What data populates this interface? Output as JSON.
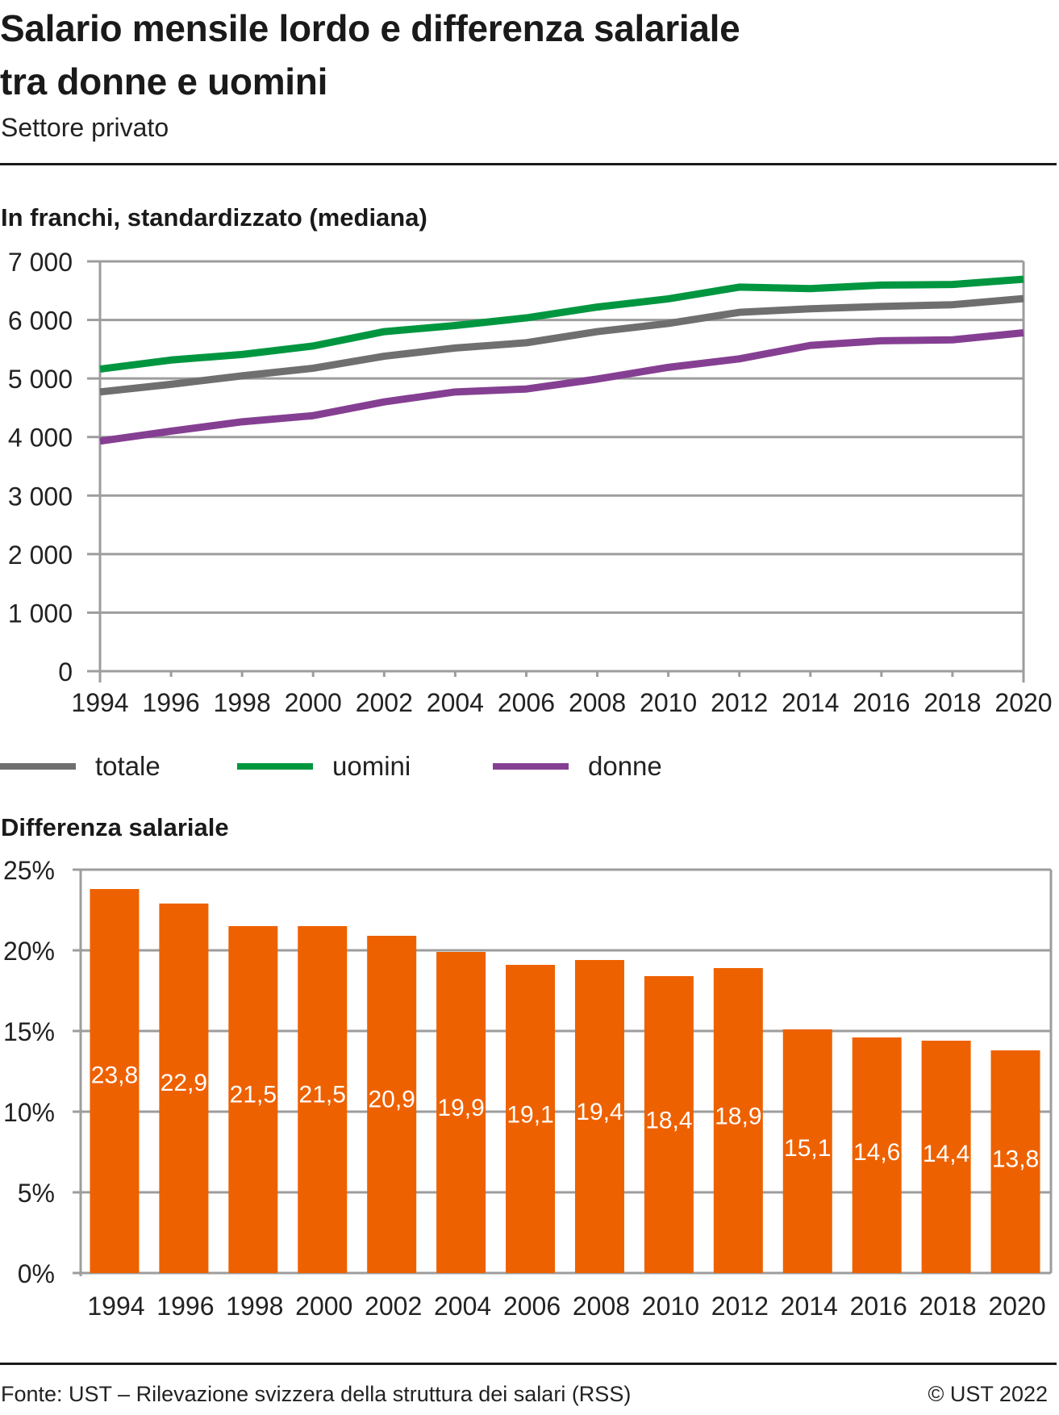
{
  "header": {
    "title_line1": "Salario mensile lordo e differenza salariale",
    "title_line2": "tra donne e uomini",
    "subtitle": "Settore privato"
  },
  "colors": {
    "totale": "#6f6f6f",
    "uomini": "#009640",
    "donne": "#853f92",
    "bars": "#ee6100",
    "grid": "#9d9d9d",
    "text": "#1a1a1a"
  },
  "chart_data": [
    {
      "type": "line",
      "title": "In franchi, standardizzato (mediana)",
      "xlabel": "",
      "ylabel": "",
      "x": [
        1994,
        1996,
        1998,
        2000,
        2002,
        2004,
        2006,
        2008,
        2010,
        2012,
        2014,
        2016,
        2018,
        2020
      ],
      "x_tick_labels": [
        "1994",
        "1996",
        "1998",
        "2000",
        "2002",
        "2004",
        "2006",
        "2008",
        "2010",
        "2012",
        "2014",
        "2016",
        "2018",
        "2020"
      ],
      "ylim": [
        0,
        7000
      ],
      "y_ticks": [
        0,
        1000,
        2000,
        3000,
        4000,
        5000,
        6000,
        7000
      ],
      "y_tick_labels": [
        "0",
        "1 000",
        "2 000",
        "3 000",
        "4 000",
        "5 000",
        "6 000",
        "7 000"
      ],
      "grid": true,
      "legend_position": "bottom",
      "series": [
        {
          "name": "totale",
          "key": "totale",
          "values": [
            4770,
            4900,
            5045,
            5175,
            5380,
            5520,
            5610,
            5800,
            5940,
            6130,
            6190,
            6230,
            6260,
            6365
          ]
        },
        {
          "name": "uomini",
          "key": "uomini",
          "values": [
            5160,
            5315,
            5410,
            5555,
            5800,
            5905,
            6035,
            6220,
            6360,
            6560,
            6535,
            6595,
            6605,
            6695
          ]
        },
        {
          "name": "donne",
          "key": "donne",
          "values": [
            3930,
            4100,
            4260,
            4365,
            4600,
            4770,
            4820,
            4990,
            5190,
            5335,
            5565,
            5645,
            5660,
            5780
          ]
        }
      ]
    },
    {
      "type": "bar",
      "title": "Differenza salariale",
      "xlabel": "",
      "ylabel": "",
      "categories": [
        "1994",
        "1996",
        "1998",
        "2000",
        "2002",
        "2004",
        "2006",
        "2008",
        "2010",
        "2012",
        "2014",
        "2016",
        "2018",
        "2020"
      ],
      "values": [
        23.8,
        22.9,
        21.5,
        21.5,
        20.9,
        19.9,
        19.1,
        19.4,
        18.4,
        18.9,
        15.1,
        14.6,
        14.4,
        13.8
      ],
      "value_labels": [
        "23,8",
        "22,9",
        "21,5",
        "21,5",
        "20,9",
        "19,9",
        "19,1",
        "19,4",
        "18,4",
        "18,9",
        "15,1",
        "14,6",
        "14,4",
        "13,8"
      ],
      "ylim": [
        0,
        25
      ],
      "y_ticks": [
        0,
        5,
        10,
        15,
        20,
        25
      ],
      "y_tick_labels": [
        "0%",
        "5%",
        "10%",
        "15%",
        "20%",
        "25%"
      ],
      "grid": true
    }
  ],
  "legend": [
    {
      "label": "totale",
      "key": "totale"
    },
    {
      "label": "uomini",
      "key": "uomini"
    },
    {
      "label": "donne",
      "key": "donne"
    }
  ],
  "footer": {
    "source": "Fonte: UST – Rilevazione svizzera della struttura dei salari (RSS)",
    "copyright": "© UST 2022"
  }
}
